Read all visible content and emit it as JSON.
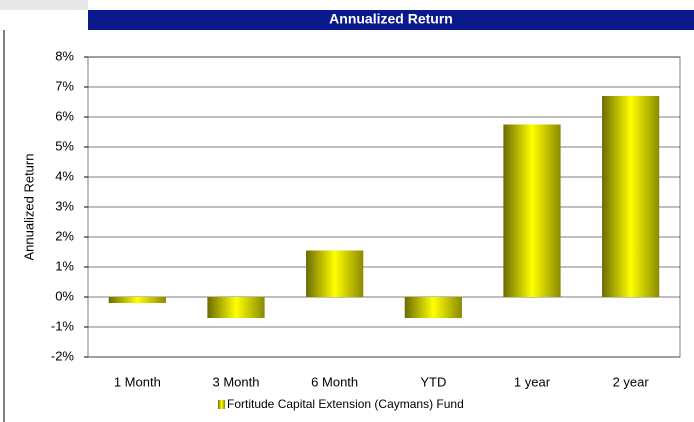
{
  "chart_data": {
    "type": "bar",
    "title": "Annualized Return",
    "y_label": "Annualized Return",
    "categories": [
      "1 Month",
      "3 Month",
      "6 Month",
      "YTD",
      "1 year",
      "2 year"
    ],
    "series": [
      {
        "name": "Fortitude Capital Extension (Caymans) Fund",
        "color": "#ffff00",
        "values": [
          -0.2,
          -0.7,
          1.55,
          -0.7,
          5.75,
          6.7
        ]
      }
    ],
    "ylim": [
      -2,
      8
    ],
    "yticks": [
      {
        "value": -2,
        "label": "-2%"
      },
      {
        "value": -1,
        "label": "-1%"
      },
      {
        "value": 0,
        "label": "0%"
      },
      {
        "value": 1,
        "label": "1%"
      },
      {
        "value": 2,
        "label": "2%"
      },
      {
        "value": 3,
        "label": "3%"
      },
      {
        "value": 4,
        "label": "4%"
      },
      {
        "value": 5,
        "label": "5%"
      },
      {
        "value": 6,
        "label": "6%"
      },
      {
        "value": 7,
        "label": "7%"
      },
      {
        "value": 8,
        "label": "8%"
      }
    ],
    "grid": true,
    "legend": "bottom"
  }
}
